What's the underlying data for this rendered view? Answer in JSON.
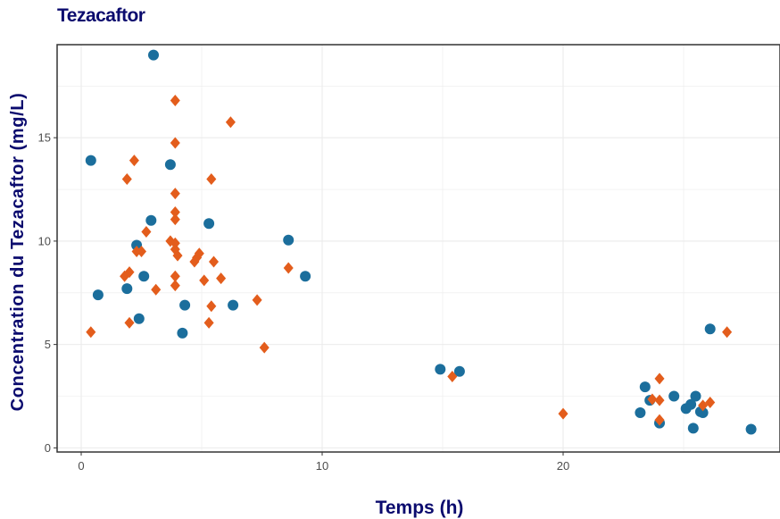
{
  "colors": {
    "accent_title": "#0b0b6e",
    "series_circle": "#1b6e9c",
    "series_diamond": "#e35d1c",
    "grid": "#ebebeb",
    "panel_border": "#333333"
  },
  "chart_data": {
    "type": "scatter",
    "title": "Tezacaftor",
    "xlabel": "Temps (h)",
    "ylabel": "Concentration du Tezacaftor (mg/L)",
    "xlim": [
      -1,
      29
    ],
    "ylim": [
      -0.2,
      19.5
    ],
    "x_ticks": [
      0,
      10,
      20
    ],
    "y_ticks": [
      0,
      5,
      10,
      15
    ],
    "grid": true,
    "legend": "none",
    "series": [
      {
        "marker": "circle",
        "color": "#1b6e9c",
        "points": [
          [
            0.4,
            13.9
          ],
          [
            0.7,
            7.4
          ],
          [
            1.9,
            7.7
          ],
          [
            2.3,
            9.8
          ],
          [
            2.4,
            6.25
          ],
          [
            2.6,
            8.3
          ],
          [
            2.9,
            11.0
          ],
          [
            3.0,
            19.0
          ],
          [
            3.7,
            13.7
          ],
          [
            4.2,
            5.55
          ],
          [
            4.3,
            6.9
          ],
          [
            5.3,
            10.85
          ],
          [
            6.3,
            6.9
          ],
          [
            8.6,
            10.05
          ],
          [
            9.3,
            8.3
          ],
          [
            14.9,
            3.8
          ],
          [
            15.7,
            3.7
          ],
          [
            23.2,
            1.7
          ],
          [
            23.4,
            2.95
          ],
          [
            23.6,
            2.3
          ],
          [
            24.0,
            1.2
          ],
          [
            24.6,
            2.5
          ],
          [
            25.1,
            1.9
          ],
          [
            25.3,
            2.1
          ],
          [
            25.4,
            0.95
          ],
          [
            25.5,
            2.5
          ],
          [
            25.7,
            1.75
          ],
          [
            25.8,
            1.7
          ],
          [
            26.1,
            5.75
          ],
          [
            27.8,
            0.9
          ]
        ]
      },
      {
        "marker": "diamond",
        "color": "#e35d1c",
        "points": [
          [
            0.4,
            5.6
          ],
          [
            1.8,
            8.3
          ],
          [
            1.9,
            13.0
          ],
          [
            2.0,
            8.5
          ],
          [
            2.0,
            6.05
          ],
          [
            2.2,
            13.9
          ],
          [
            2.3,
            9.5
          ],
          [
            2.5,
            9.5
          ],
          [
            2.7,
            10.45
          ],
          [
            3.1,
            7.65
          ],
          [
            3.7,
            10.0
          ],
          [
            3.9,
            16.8
          ],
          [
            3.9,
            14.75
          ],
          [
            3.9,
            12.3
          ],
          [
            3.9,
            11.4
          ],
          [
            3.9,
            11.05
          ],
          [
            3.9,
            9.9
          ],
          [
            3.9,
            9.6
          ],
          [
            4.0,
            9.3
          ],
          [
            3.9,
            8.3
          ],
          [
            3.9,
            7.85
          ],
          [
            4.7,
            9.0
          ],
          [
            4.8,
            9.2
          ],
          [
            4.9,
            9.4
          ],
          [
            5.1,
            8.1
          ],
          [
            5.3,
            6.05
          ],
          [
            5.4,
            6.85
          ],
          [
            5.4,
            13.0
          ],
          [
            5.5,
            9.0
          ],
          [
            5.8,
            8.2
          ],
          [
            6.2,
            15.75
          ],
          [
            7.3,
            7.15
          ],
          [
            7.6,
            4.85
          ],
          [
            8.6,
            8.7
          ],
          [
            15.4,
            3.45
          ],
          [
            20.0,
            1.65
          ],
          [
            23.7,
            2.35
          ],
          [
            24.0,
            3.35
          ],
          [
            24.0,
            2.3
          ],
          [
            24.0,
            1.35
          ],
          [
            25.8,
            2.05
          ],
          [
            26.1,
            2.2
          ],
          [
            26.8,
            5.6
          ]
        ]
      }
    ]
  }
}
